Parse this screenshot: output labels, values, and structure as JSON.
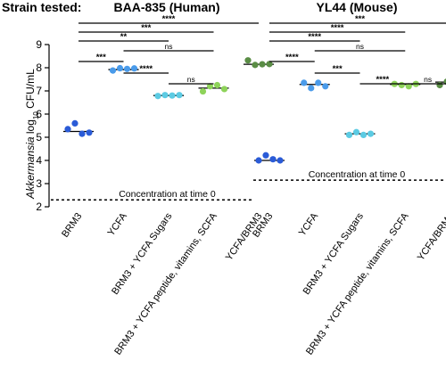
{
  "strain_label": "Strain tested:",
  "chart_data": {
    "type": "scatter",
    "ylabel": {
      "prefix": "Akkermansia",
      "main": " log",
      "sub": "10",
      "suffix": " CFU/mL"
    },
    "ylim": [
      2,
      9
    ],
    "yticks": [
      "2",
      "3",
      "4",
      "5",
      "6",
      "7",
      "8",
      "9"
    ],
    "grid": false,
    "legend": "none",
    "panels": [
      {
        "title": "BAA-835 (Human)",
        "categories": [
          "BRM3",
          "YCFA",
          "BRM3 + YCFA  Sugars",
          "BRM3 + YCFA peptide, vitamins, SCFA",
          "YCFA/BRM3"
        ],
        "colors": [
          "#2a5bd7",
          "#4a9bea",
          "#5ccbe3",
          "#8ed35a",
          "#5a8d45"
        ],
        "points": [
          [
            5.35,
            5.6,
            5.15,
            5.2
          ],
          [
            7.88,
            7.98,
            7.95,
            7.97
          ],
          [
            6.78,
            6.82,
            6.8,
            6.82
          ],
          [
            6.98,
            7.2,
            7.25,
            7.08
          ],
          [
            8.32,
            8.12,
            8.15,
            8.16
          ]
        ],
        "means": [
          5.25,
          7.92,
          6.8,
          7.12,
          8.15
        ],
        "concentration_time0": 2.3,
        "concentration_label": "Concentration at time 0",
        "comparisons": [
          {
            "from": 0,
            "to": 4,
            "label": "****"
          },
          {
            "from": 0,
            "to": 3,
            "label": "***"
          },
          {
            "from": 0,
            "to": 2,
            "label": "**"
          },
          {
            "from": 1,
            "to": 3,
            "label": "ns"
          },
          {
            "from": 0,
            "to": 1,
            "label": "***"
          },
          {
            "from": 1,
            "to": 2,
            "label": "****"
          },
          {
            "from": 2,
            "to": 3,
            "label": "ns"
          }
        ]
      },
      {
        "title": "YL44 (Mouse)",
        "categories": [
          "BRM3",
          "YCFA",
          "BRM3 + YCFA  Sugars",
          "BRM3 + YCFA peptide, vitamins, SCFA",
          "YCFA/BRM3"
        ],
        "colors": [
          "#2a5bd7",
          "#4a9bea",
          "#5ccbe3",
          "#8ed35a",
          "#5a8d45"
        ],
        "points": [
          [
            4.0,
            4.22,
            4.05,
            4.0
          ],
          [
            7.35,
            7.12,
            7.35,
            7.2
          ],
          [
            5.1,
            5.22,
            5.1,
            5.15
          ],
          [
            7.3,
            7.25,
            7.2,
            7.3
          ],
          [
            7.25,
            7.4,
            7.5,
            7.35
          ]
        ],
        "means": [
          4.0,
          7.28,
          5.15,
          7.28,
          7.38
        ],
        "concentration_time0": 3.15,
        "concentration_label": "Concentration at time 0",
        "comparisons": [
          {
            "from": 0,
            "to": 4,
            "label": "***"
          },
          {
            "from": 0,
            "to": 3,
            "label": "****"
          },
          {
            "from": 0,
            "to": 2,
            "label": "****"
          },
          {
            "from": 1,
            "to": 3,
            "label": "ns"
          },
          {
            "from": 0,
            "to": 1,
            "label": "****"
          },
          {
            "from": 1,
            "to": 2,
            "label": "***"
          },
          {
            "from": 2,
            "to": 3,
            "label": "****"
          },
          {
            "from": 3,
            "to": 4,
            "label": "ns"
          }
        ]
      }
    ]
  }
}
